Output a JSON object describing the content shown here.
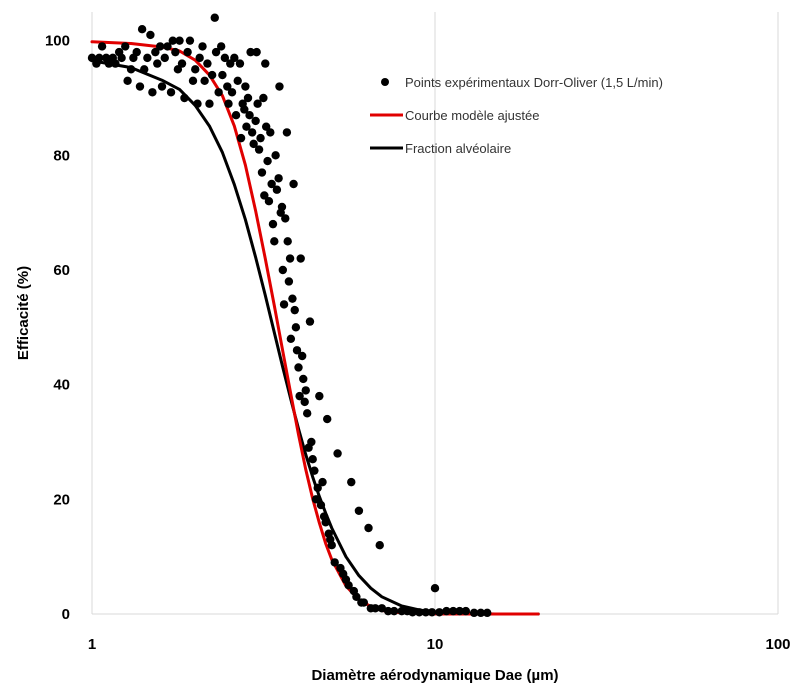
{
  "colors": {
    "points": "#000000",
    "fitted": "#e00000",
    "alveolar": "#000000",
    "grid": "#d9d9d9"
  },
  "chart_data": {
    "type": "scatter",
    "xlabel": "Diamètre aérodynamique Dae (µm)",
    "ylabel": "Efficacité (%)",
    "xscale": "log",
    "xlim": [
      1,
      100
    ],
    "ylim": [
      0,
      105
    ],
    "xticks": [
      1,
      10,
      100
    ],
    "xtick_labels": [
      "1",
      "10",
      "100"
    ],
    "yticks": [
      0,
      20,
      40,
      60,
      80,
      100
    ],
    "ytick_labels": [
      "0",
      "20",
      "40",
      "60",
      "80",
      "100"
    ],
    "grid": "vertical major gridlines",
    "legend_position": "top-right",
    "series": [
      {
        "name": "Points expérimentaux Dorr-Oliver (1,5 L/min)",
        "kind": "scatter",
        "points": [
          [
            1.0,
            97
          ],
          [
            1.03,
            96
          ],
          [
            1.05,
            97
          ],
          [
            1.07,
            99
          ],
          [
            1.1,
            97
          ],
          [
            1.12,
            96
          ],
          [
            1.15,
            97
          ],
          [
            1.17,
            96
          ],
          [
            1.2,
            98
          ],
          [
            1.22,
            97
          ],
          [
            1.25,
            99
          ],
          [
            1.27,
            93
          ],
          [
            1.3,
            95
          ],
          [
            1.32,
            97
          ],
          [
            1.35,
            98
          ],
          [
            1.38,
            92
          ],
          [
            1.4,
            102
          ],
          [
            1.42,
            95
          ],
          [
            1.45,
            97
          ],
          [
            1.48,
            101
          ],
          [
            1.5,
            91
          ],
          [
            1.53,
            98
          ],
          [
            1.55,
            96
          ],
          [
            1.58,
            99
          ],
          [
            1.6,
            92
          ],
          [
            1.63,
            97
          ],
          [
            1.66,
            99
          ],
          [
            1.7,
            91
          ],
          [
            1.72,
            100
          ],
          [
            1.75,
            98
          ],
          [
            1.78,
            95
          ],
          [
            1.8,
            100
          ],
          [
            1.83,
            96
          ],
          [
            1.86,
            90
          ],
          [
            1.9,
            98
          ],
          [
            1.93,
            100
          ],
          [
            1.97,
            93
          ],
          [
            2.0,
            95
          ],
          [
            2.03,
            89
          ],
          [
            2.06,
            97
          ],
          [
            2.1,
            99
          ],
          [
            2.13,
            93
          ],
          [
            2.17,
            96
          ],
          [
            2.2,
            89
          ],
          [
            2.24,
            94
          ],
          [
            2.28,
            104
          ],
          [
            2.3,
            98
          ],
          [
            2.34,
            91
          ],
          [
            2.38,
            99
          ],
          [
            2.4,
            94
          ],
          [
            2.44,
            97
          ],
          [
            2.48,
            92
          ],
          [
            2.5,
            89
          ],
          [
            2.53,
            96
          ],
          [
            2.56,
            91
          ],
          [
            2.6,
            97
          ],
          [
            2.63,
            87
          ],
          [
            2.66,
            93
          ],
          [
            2.7,
            96
          ],
          [
            2.72,
            83
          ],
          [
            2.75,
            89
          ],
          [
            2.78,
            88
          ],
          [
            2.8,
            92
          ],
          [
            2.82,
            85
          ],
          [
            2.85,
            90
          ],
          [
            2.88,
            87
          ],
          [
            2.9,
            98
          ],
          [
            2.93,
            84
          ],
          [
            2.96,
            82
          ],
          [
            3.0,
            86
          ],
          [
            3.02,
            98
          ],
          [
            3.04,
            89
          ],
          [
            3.07,
            81
          ],
          [
            3.1,
            83
          ],
          [
            3.13,
            77
          ],
          [
            3.16,
            90
          ],
          [
            3.18,
            73
          ],
          [
            3.2,
            96
          ],
          [
            3.22,
            85
          ],
          [
            3.25,
            79
          ],
          [
            3.28,
            72
          ],
          [
            3.31,
            84
          ],
          [
            3.34,
            75
          ],
          [
            3.37,
            68
          ],
          [
            3.4,
            65
          ],
          [
            3.43,
            80
          ],
          [
            3.46,
            74
          ],
          [
            3.5,
            76
          ],
          [
            3.52,
            92
          ],
          [
            3.55,
            70
          ],
          [
            3.58,
            71
          ],
          [
            3.6,
            60
          ],
          [
            3.63,
            54
          ],
          [
            3.66,
            69
          ],
          [
            3.7,
            84
          ],
          [
            3.72,
            65
          ],
          [
            3.75,
            58
          ],
          [
            3.78,
            62
          ],
          [
            3.8,
            48
          ],
          [
            3.84,
            55
          ],
          [
            3.87,
            75
          ],
          [
            3.9,
            53
          ],
          [
            3.93,
            50
          ],
          [
            3.96,
            46
          ],
          [
            4.0,
            43
          ],
          [
            4.03,
            38
          ],
          [
            4.06,
            62
          ],
          [
            4.1,
            45
          ],
          [
            4.13,
            41
          ],
          [
            4.17,
            37
          ],
          [
            4.2,
            39
          ],
          [
            4.24,
            35
          ],
          [
            4.28,
            29
          ],
          [
            4.32,
            51
          ],
          [
            4.36,
            30
          ],
          [
            4.4,
            27
          ],
          [
            4.45,
            25
          ],
          [
            4.5,
            20
          ],
          [
            4.55,
            22
          ],
          [
            4.6,
            38
          ],
          [
            4.65,
            19
          ],
          [
            4.7,
            23
          ],
          [
            4.75,
            17
          ],
          [
            4.8,
            16
          ],
          [
            4.85,
            34
          ],
          [
            4.9,
            14
          ],
          [
            4.95,
            13
          ],
          [
            5.0,
            12
          ],
          [
            5.1,
            9
          ],
          [
            5.2,
            28
          ],
          [
            5.3,
            8
          ],
          [
            5.4,
            7
          ],
          [
            5.5,
            6
          ],
          [
            5.6,
            5
          ],
          [
            5.7,
            23
          ],
          [
            5.8,
            4
          ],
          [
            5.9,
            3
          ],
          [
            6.0,
            18
          ],
          [
            6.1,
            2
          ],
          [
            6.2,
            2
          ],
          [
            6.4,
            15
          ],
          [
            6.5,
            1
          ],
          [
            6.7,
            1
          ],
          [
            6.9,
            12
          ],
          [
            7.0,
            1
          ],
          [
            7.3,
            0.5
          ],
          [
            7.6,
            0.5
          ],
          [
            8.0,
            0.5
          ],
          [
            8.3,
            0.5
          ],
          [
            8.6,
            0.3
          ],
          [
            9.0,
            0.3
          ],
          [
            9.4,
            0.3
          ],
          [
            9.8,
            0.3
          ],
          [
            10.0,
            4.5
          ],
          [
            10.3,
            0.3
          ],
          [
            10.8,
            0.5
          ],
          [
            11.3,
            0.5
          ],
          [
            11.8,
            0.5
          ],
          [
            12.3,
            0.5
          ],
          [
            13.0,
            0.2
          ],
          [
            13.6,
            0.2
          ],
          [
            14.2,
            0.2
          ]
        ]
      },
      {
        "name": "Courbe modèle ajustée",
        "kind": "line",
        "points": [
          [
            1.0,
            99.8
          ],
          [
            1.3,
            99.5
          ],
          [
            1.6,
            98.9
          ],
          [
            1.8,
            98.2
          ],
          [
            2.0,
            96.6
          ],
          [
            2.2,
            94.0
          ],
          [
            2.4,
            90.4
          ],
          [
            2.6,
            85.1
          ],
          [
            2.8,
            78.3
          ],
          [
            3.0,
            70.3
          ],
          [
            3.2,
            62.0
          ],
          [
            3.4,
            53.8
          ],
          [
            3.6,
            45.8
          ],
          [
            3.8,
            38.3
          ],
          [
            4.0,
            31.3
          ],
          [
            4.2,
            25.2
          ],
          [
            4.4,
            20.1
          ],
          [
            4.6,
            15.9
          ],
          [
            4.8,
            12.3
          ],
          [
            5.0,
            9.5
          ],
          [
            5.5,
            4.9
          ],
          [
            6.0,
            2.5
          ],
          [
            6.5,
            1.3
          ],
          [
            7.0,
            0.6
          ],
          [
            8.0,
            0.2
          ],
          [
            9.0,
            0.1
          ],
          [
            10.0,
            0.0
          ],
          [
            12.0,
            0.0
          ],
          [
            15.0,
            0.0
          ],
          [
            20.0,
            0.0
          ]
        ]
      },
      {
        "name": "Fraction alvéolaire",
        "kind": "line",
        "points": [
          [
            1.0,
            96.5
          ],
          [
            1.3,
            95.3
          ],
          [
            1.6,
            93.1
          ],
          [
            1.8,
            91.5
          ],
          [
            2.0,
            88.7
          ],
          [
            2.2,
            85.1
          ],
          [
            2.4,
            80.5
          ],
          [
            2.6,
            74.9
          ],
          [
            2.8,
            68.8
          ],
          [
            3.0,
            62.2
          ],
          [
            3.2,
            55.6
          ],
          [
            3.4,
            49.1
          ],
          [
            3.6,
            43.0
          ],
          [
            3.8,
            37.4
          ],
          [
            4.0,
            32.3
          ],
          [
            4.2,
            27.8
          ],
          [
            4.4,
            23.9
          ],
          [
            4.6,
            20.5
          ],
          [
            4.8,
            17.6
          ],
          [
            5.0,
            15.0
          ],
          [
            5.5,
            10.0
          ],
          [
            6.0,
            6.7
          ],
          [
            6.5,
            4.5
          ],
          [
            7.0,
            3.0
          ],
          [
            8.0,
            1.4
          ],
          [
            9.0,
            0.7
          ],
          [
            10.0,
            0.3
          ],
          [
            12.0,
            0.1
          ],
          [
            15.0,
            0.0
          ],
          [
            20.0,
            0.0
          ]
        ]
      }
    ]
  }
}
